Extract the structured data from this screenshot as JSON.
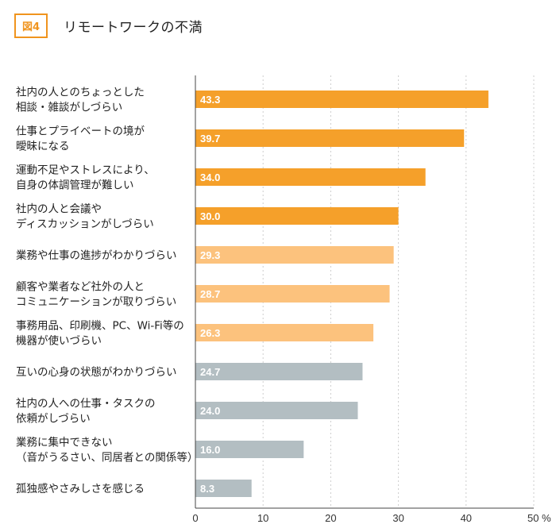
{
  "header": {
    "badge": "図4",
    "title": "リモートワークの不満"
  },
  "chart_data": {
    "type": "bar",
    "orientation": "horizontal",
    "title": "リモートワークの不満",
    "xlabel": "",
    "ylabel": "",
    "xlim": [
      0,
      50
    ],
    "unit": "%",
    "ticks": [
      "0",
      "10",
      "20",
      "30",
      "40",
      "50"
    ],
    "grid": true,
    "colors": {
      "dark_orange": "#f5a02a",
      "light_orange": "#fcc27d",
      "gray": "#b3bec2",
      "axis": "#444444",
      "grid": "#cccccc"
    },
    "categories": [
      [
        "社内の人とのちょっとした",
        "相談・雑談がしづらい"
      ],
      [
        "仕事とプライベートの境が",
        "曖昧になる"
      ],
      [
        "運動不足やストレスにより、",
        "自身の体調管理が難しい"
      ],
      [
        "社内の人と会議や",
        "ディスカッションがしづらい"
      ],
      [
        "業務や仕事の進捗がわかりづらい"
      ],
      [
        "顧客や業者など社外の人と",
        "コミュニケーションが取りづらい"
      ],
      [
        "事務用品、印刷機、PC、Wi-Fi等の",
        "機器が使いづらい"
      ],
      [
        "互いの心身の状態がわかりづらい"
      ],
      [
        "社内の人への仕事・タスクの",
        "依頼がしづらい"
      ],
      [
        "業務に集中できない",
        "（音がうるさい、同居者との関係等）"
      ],
      [
        "孤独感やさみしさを感じる"
      ]
    ],
    "values": [
      43.3,
      39.7,
      34.0,
      30.0,
      29.3,
      28.7,
      26.3,
      24.7,
      24.0,
      16.0,
      8.3
    ],
    "value_labels": [
      "43.3",
      "39.7",
      "34.0",
      "30.0",
      "29.3",
      "28.7",
      "26.3",
      "24.7",
      "24.0",
      "16.0",
      "8.3"
    ],
    "color_groups": [
      "dark_orange",
      "dark_orange",
      "dark_orange",
      "dark_orange",
      "light_orange",
      "light_orange",
      "light_orange",
      "gray",
      "gray",
      "gray",
      "gray"
    ]
  }
}
